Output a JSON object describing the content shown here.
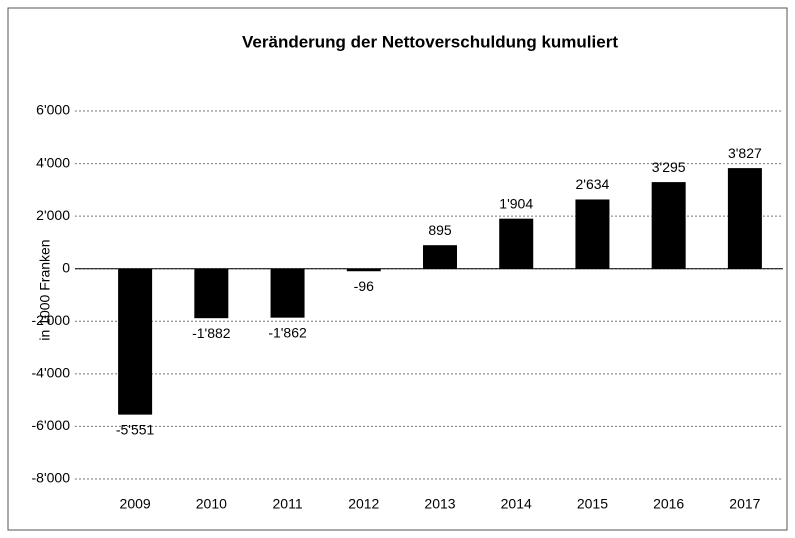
{
  "chart_data": {
    "type": "bar",
    "title": "Veränderung der Nettoverschuldung kumuliert",
    "y_label": "in 1000 Franken",
    "categories": [
      "2009",
      "2010",
      "2011",
      "2012",
      "2013",
      "2014",
      "2015",
      "2016",
      "2017"
    ],
    "values": [
      -5551,
      -1882,
      -1862,
      -96,
      895,
      1904,
      2634,
      3295,
      3827
    ],
    "value_labels": [
      "-5'551",
      "-1'882",
      "-1'862",
      "-96",
      "895",
      "1'904",
      "2'634",
      "3'295",
      "3'827"
    ],
    "color": "#000000",
    "ylim": [
      -8000,
      6000
    ],
    "yticks": [
      {
        "value": -8000,
        "label": "-8'000"
      },
      {
        "value": -6000,
        "label": "-6'000"
      },
      {
        "value": -4000,
        "label": "-4'000"
      },
      {
        "value": -2000,
        "label": "-2'000"
      },
      0,
      {
        "value": 2000,
        "label": "2'000"
      },
      {
        "value": 4000,
        "label": "4'000"
      },
      {
        "value": 6000,
        "label": "6'000"
      }
    ],
    "grid": true
  }
}
